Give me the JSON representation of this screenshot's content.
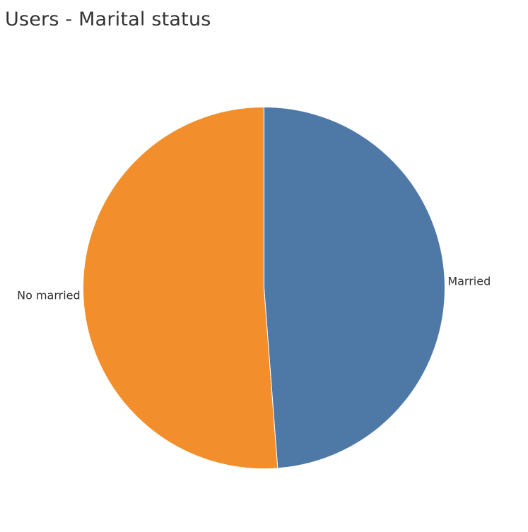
{
  "chart_data": {
    "type": "pie",
    "title": "Users - Marital status",
    "slices": [
      {
        "label": "Married",
        "value": 48.8,
        "color": "#4e79a7"
      },
      {
        "label": "No married",
        "value": 51.2,
        "color": "#f28e2b"
      }
    ],
    "legend": "none"
  }
}
